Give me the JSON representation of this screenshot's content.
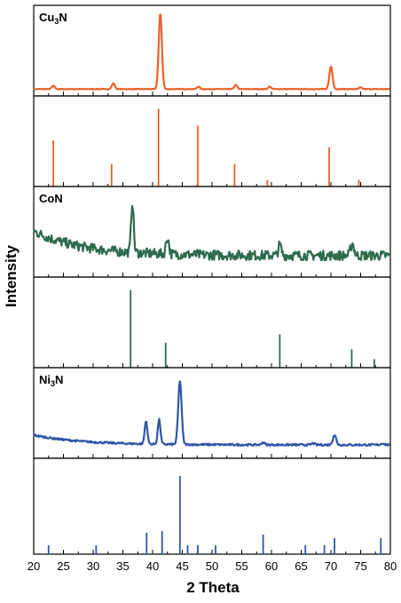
{
  "chart_data": {
    "type": "line",
    "xlabel": "2 Theta",
    "ylabel": "Intensity",
    "xlim": [
      20,
      80
    ],
    "x_ticks": [
      "20",
      "25",
      "30",
      "35",
      "40",
      "45",
      "50",
      "55",
      "60",
      "65",
      "70",
      "75",
      "80"
    ],
    "colors": {
      "Cu3N": "#e8632a",
      "CoN": "#2e6b4f",
      "Ni3N": "#2f56a6"
    },
    "panels": [
      {
        "kind": "pattern",
        "label": "Cu",
        "label_sub": "3",
        "label_tail": "N",
        "color": "#e8632a",
        "noise": 0.004,
        "baseline": 0.04,
        "peaks": [
          {
            "x": 23.3,
            "h": 0.04,
            "w": 0.35
          },
          {
            "x": 33.4,
            "h": 0.07,
            "w": 0.35
          },
          {
            "x": 41.3,
            "h": 0.93,
            "w": 0.38
          },
          {
            "x": 47.7,
            "h": 0.03,
            "w": 0.35
          },
          {
            "x": 54.0,
            "h": 0.05,
            "w": 0.35
          },
          {
            "x": 59.7,
            "h": 0.03,
            "w": 0.35
          },
          {
            "x": 70.0,
            "h": 0.28,
            "w": 0.38
          },
          {
            "x": 75.0,
            "h": 0.02,
            "w": 0.35
          }
        ]
      },
      {
        "kind": "reference",
        "color": "#e8632a",
        "lines": [
          {
            "x": 23.3,
            "h": 0.55
          },
          {
            "x": 33.1,
            "h": 0.27
          },
          {
            "x": 41.0,
            "h": 0.93
          },
          {
            "x": 47.6,
            "h": 0.73
          },
          {
            "x": 53.8,
            "h": 0.27
          },
          {
            "x": 59.3,
            "h": 0.08
          },
          {
            "x": 69.7,
            "h": 0.47
          },
          {
            "x": 74.7,
            "h": 0.08
          }
        ]
      },
      {
        "kind": "pattern",
        "label": "CoN",
        "label_sub": "",
        "label_tail": "",
        "color": "#2e6b4f",
        "noise": 0.06,
        "baseline": 0.22,
        "slope": 0.3,
        "peaks": [
          {
            "x": 36.6,
            "h": 0.62,
            "w": 0.3
          },
          {
            "x": 42.5,
            "h": 0.2,
            "w": 0.35
          },
          {
            "x": 61.4,
            "h": 0.13,
            "w": 0.35
          },
          {
            "x": 73.6,
            "h": 0.15,
            "w": 0.4
          }
        ]
      },
      {
        "kind": "reference",
        "color": "#2e6b4f",
        "lines": [
          {
            "x": 36.3,
            "h": 0.93
          },
          {
            "x": 42.2,
            "h": 0.3
          },
          {
            "x": 61.4,
            "h": 0.4
          },
          {
            "x": 73.5,
            "h": 0.22
          },
          {
            "x": 77.3,
            "h": 0.1
          }
        ]
      },
      {
        "kind": "pattern",
        "label": "Ni",
        "label_sub": "3",
        "label_tail": "N",
        "color": "#2f56a6",
        "noise": 0.012,
        "baseline": 0.12,
        "slope": 0.12,
        "peaks": [
          {
            "x": 38.9,
            "h": 0.28,
            "w": 0.32
          },
          {
            "x": 41.1,
            "h": 0.3,
            "w": 0.32
          },
          {
            "x": 44.6,
            "h": 0.78,
            "w": 0.4
          },
          {
            "x": 58.6,
            "h": 0.03,
            "w": 0.35
          },
          {
            "x": 67.0,
            "h": 0.02,
            "w": 0.35
          },
          {
            "x": 70.6,
            "h": 0.12,
            "w": 0.4
          },
          {
            "x": 78.7,
            "h": 0.02,
            "w": 0.35
          }
        ]
      },
      {
        "kind": "reference",
        "color": "#2f56a6",
        "lines": [
          {
            "x": 22.5,
            "h": 0.1
          },
          {
            "x": 30.5,
            "h": 0.1
          },
          {
            "x": 39.0,
            "h": 0.24
          },
          {
            "x": 41.6,
            "h": 0.26
          },
          {
            "x": 44.6,
            "h": 0.88
          },
          {
            "x": 45.9,
            "h": 0.1
          },
          {
            "x": 47.6,
            "h": 0.1
          },
          {
            "x": 50.6,
            "h": 0.1
          },
          {
            "x": 58.6,
            "h": 0.22
          },
          {
            "x": 65.7,
            "h": 0.1
          },
          {
            "x": 68.9,
            "h": 0.1
          },
          {
            "x": 70.6,
            "h": 0.18
          },
          {
            "x": 78.4,
            "h": 0.18
          }
        ]
      }
    ]
  }
}
